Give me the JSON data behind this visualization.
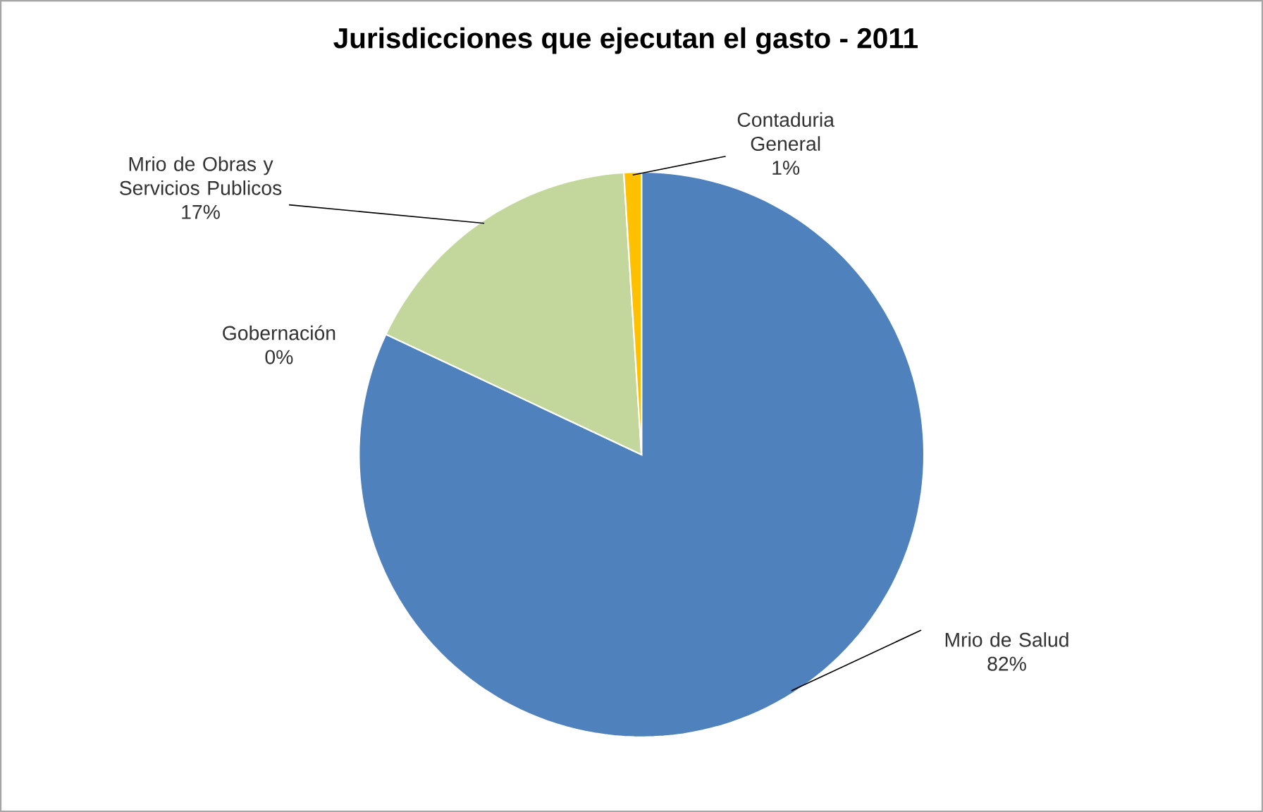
{
  "chart_data": {
    "type": "pie",
    "title": "Jurisdicciones que ejecutan el gasto - 2011",
    "categories": [
      "Mrio de Salud",
      "Gobernación",
      "Mrio de Obras y Servicios Publicos",
      "Contaduria General"
    ],
    "values": [
      82,
      0,
      17,
      1
    ],
    "value_labels": [
      "82%",
      "0%",
      "17%",
      "1%"
    ],
    "colors": [
      "#4f81bd",
      "#c0504d",
      "#c3d69b",
      "#ffc000"
    ]
  }
}
